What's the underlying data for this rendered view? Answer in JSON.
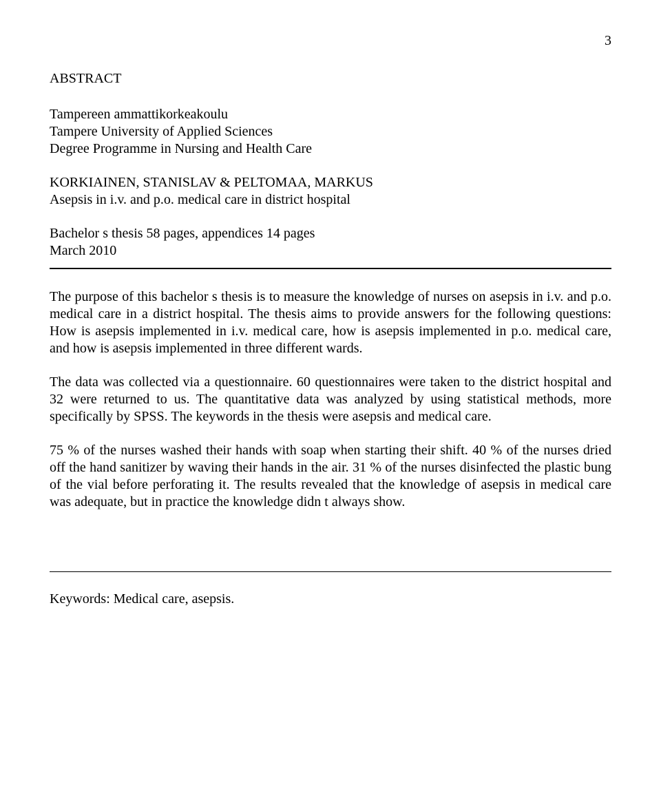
{
  "page_number": "3",
  "section_title": "ABSTRACT",
  "institution": {
    "line1": "Tampereen ammattikorkeakoulu",
    "line2": "Tampere University of Applied Sciences",
    "line3": "Degree Programme in Nursing and Health Care"
  },
  "authors": "KORKIAINEN, STANISLAV & PELTOMAA, MARKUS",
  "title": "Asepsis in i.v. and p.o. medical care in district hospital",
  "thesis_info": {
    "pages": "Bachelor s thesis 58 pages, appendices 14 pages",
    "date": "March 2010"
  },
  "paragraphs": {
    "p1": "The purpose of this bachelor s thesis is to measure the knowledge of nurses on asepsis in i.v. and p.o. medical care in a district hospital. The thesis aims to provide answers for the following questions: How is asepsis implemented in i.v. medical care, how is asepsis implemented in p.o. medical care, and how is asepsis implemented in three different wards.",
    "p2": "The data was collected via a questionnaire. 60 questionnaires were taken to the district hospital and 32 were returned to us. The quantitative data was analyzed by using statistical methods, more specifically by SPSS. The keywords in the thesis were asepsis and medical care.",
    "p3": "75 % of the nurses washed their hands with soap when starting their shift. 40 % of the nurses dried off the hand sanitizer by waving their hands in the air. 31 % of the nurses disinfected the plastic bung of the vial before perforating it. The results revealed that the knowledge of asepsis in medical care was adequate, but in practice the knowledge didn t always show."
  },
  "keywords": "Keywords: Medical care, asepsis."
}
